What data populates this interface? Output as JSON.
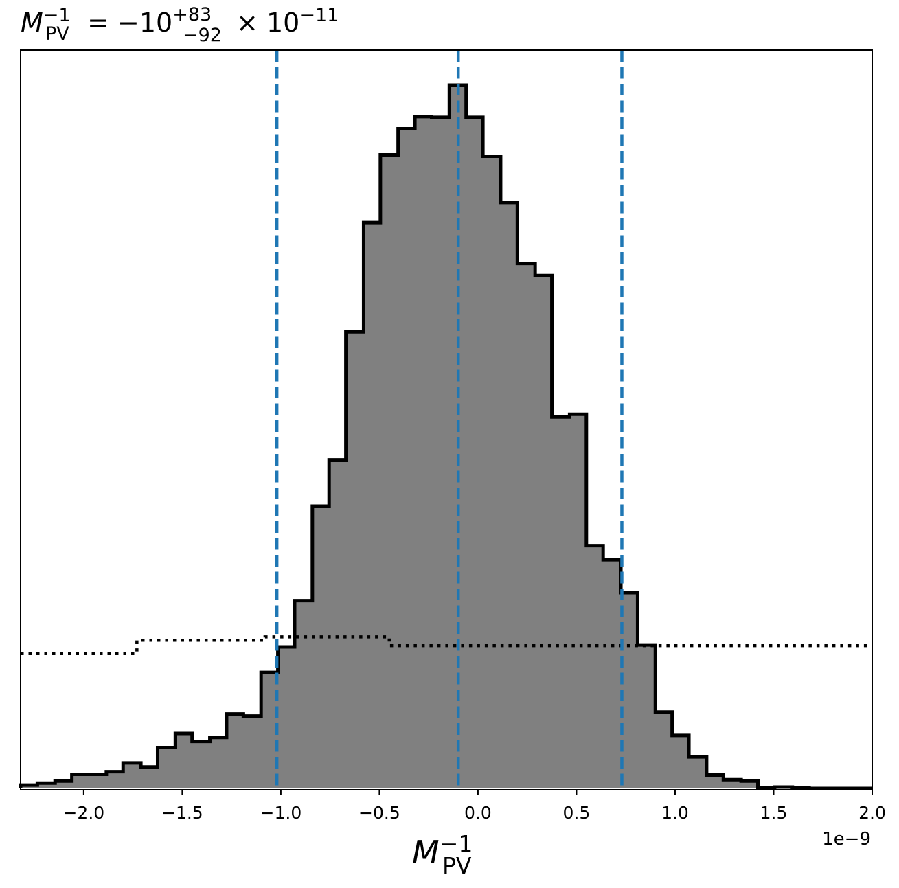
{
  "chart_data": {
    "type": "histogram",
    "title_parts": {
      "symbol": "M",
      "symbol_sub": "PV",
      "symbol_sup": "−1",
      "equals": " = −10",
      "err_plus": "+83",
      "err_minus": "−92",
      "times": " × 10",
      "exp": "−11"
    },
    "xlabel_parts": {
      "symbol": "M",
      "sub": "PV",
      "sup": "−1"
    },
    "offset_label": "1e−9",
    "x_unit_scale": 1e-09,
    "xlim": [
      -2.32,
      2.0
    ],
    "ylim": [
      0,
      1.0
    ],
    "y_ticks_visible": false,
    "x_ticks": [
      -2.0,
      -1.5,
      -1.0,
      -0.5,
      0.0,
      0.5,
      1.0,
      1.5,
      2.0
    ],
    "x_tick_labels": [
      "−2.0",
      "−1.5",
      "−1.0",
      "−0.5",
      "0.0",
      "0.5",
      "1.0",
      "1.5",
      "2.0"
    ],
    "histogram": {
      "fill_color": "#808080",
      "edge_color": "#000000",
      "bin_edges": [
        -2.32,
        -2.235,
        -2.145,
        -2.06,
        -1.975,
        -1.885,
        -1.8,
        -1.71,
        -1.625,
        -1.535,
        -1.45,
        -1.36,
        -1.275,
        -1.19,
        -1.1,
        -1.015,
        -0.93,
        -0.84,
        -0.755,
        -0.67,
        -0.58,
        -0.495,
        -0.405,
        -0.32,
        -0.235,
        -0.145,
        -0.06,
        0.025,
        0.115,
        0.2,
        0.29,
        0.375,
        0.465,
        0.55,
        0.635,
        0.725,
        0.81,
        0.9,
        0.985,
        1.07,
        1.16,
        1.245,
        1.335,
        1.42,
        1.505,
        1.595,
        1.68,
        1.77,
        1.855,
        1.94,
        2.0
      ],
      "heights": [
        0.005,
        0.008,
        0.011,
        0.021,
        0.021,
        0.025,
        0.038,
        0.032,
        0.061,
        0.082,
        0.07,
        0.076,
        0.111,
        0.108,
        0.173,
        0.211,
        0.28,
        0.421,
        0.49,
        0.681,
        0.844,
        0.945,
        0.984,
        1.002,
        1.001,
        1.049,
        1.001,
        0.943,
        0.874,
        0.783,
        0.765,
        0.554,
        0.558,
        0.362,
        0.341,
        0.292,
        0.214,
        0.114,
        0.079,
        0.047,
        0.02,
        0.013,
        0.011,
        0.001,
        0.002,
        0.001,
        0.0,
        0.0,
        0.0,
        0.0
      ]
    },
    "prior": {
      "style": "dotted",
      "color": "#000000",
      "bin_edges": [
        -2.32,
        -1.73,
        -1.08,
        -0.45,
        2.0
      ],
      "heights": [
        0.201,
        0.221,
        0.226,
        0.213
      ]
    },
    "vlines": {
      "style": "dashed",
      "color": "#1f77b4",
      "x": [
        -1.02,
        -0.1,
        0.73
      ]
    }
  }
}
